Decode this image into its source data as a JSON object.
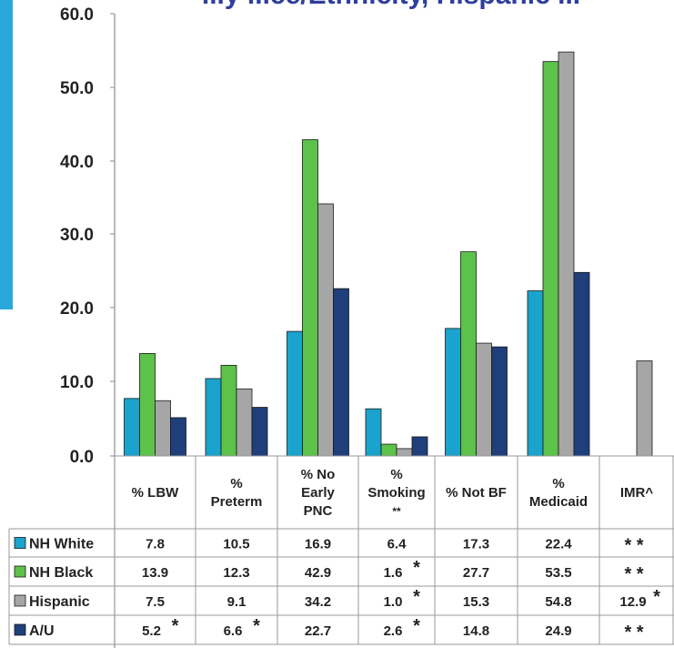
{
  "title": "...y ...ce/Ethnicity, Hispanic ...",
  "colors": {
    "nh_white": "#1aa3cc",
    "nh_black": "#5cc24a",
    "hispanic": "#a6a6a6",
    "au": "#1f3f7a",
    "title": "#2e3f9e",
    "left_band": "#2aa8dc"
  },
  "chart_data": {
    "type": "bar",
    "title": "",
    "xlabel": "",
    "ylabel": "",
    "ylim": [
      0,
      60
    ],
    "yticks": [
      "0.0",
      "10.0",
      "20.0",
      "30.0",
      "40.0",
      "50.0",
      "60.0"
    ],
    "grid": false,
    "legend": "table-left",
    "categories": [
      [
        "% LBW"
      ],
      [
        "%",
        "Preterm"
      ],
      [
        "% No",
        "Early",
        "PNC"
      ],
      [
        "%",
        "Smoking",
        "**"
      ],
      [
        "% Not BF"
      ],
      [
        "%",
        "Medicaid"
      ],
      [
        "IMR^"
      ]
    ],
    "series": [
      {
        "name": "NH White",
        "color": "#1aa3cc",
        "values": [
          7.8,
          10.5,
          16.9,
          6.4,
          17.3,
          22.4,
          null
        ],
        "labels": [
          "7.8",
          "10.5",
          "16.9",
          "6.4",
          "17.3",
          "22.4",
          "* *"
        ],
        "flags": [
          false,
          false,
          false,
          false,
          false,
          false,
          false
        ]
      },
      {
        "name": "NH Black",
        "color": "#5cc24a",
        "values": [
          13.9,
          12.3,
          42.9,
          1.6,
          27.7,
          53.5,
          null
        ],
        "labels": [
          "13.9",
          "12.3",
          "42.9",
          "1.6",
          "27.7",
          "53.5",
          "* *"
        ],
        "flags": [
          false,
          false,
          false,
          true,
          false,
          false,
          false
        ]
      },
      {
        "name": "Hispanic",
        "color": "#a6a6a6",
        "values": [
          7.5,
          9.1,
          34.2,
          1.0,
          15.3,
          54.8,
          12.9
        ],
        "labels": [
          "7.5",
          "9.1",
          "34.2",
          "1.0",
          "15.3",
          "54.8",
          "12.9"
        ],
        "flags": [
          false,
          false,
          false,
          true,
          false,
          false,
          true
        ]
      },
      {
        "name": "A/U",
        "color": "#1f3f7a",
        "values": [
          5.2,
          6.6,
          22.7,
          2.6,
          14.8,
          24.9,
          null
        ],
        "labels": [
          "5.2",
          "6.6",
          "22.7",
          "2.6",
          "14.8",
          "24.9",
          "* *"
        ],
        "flags": [
          true,
          true,
          false,
          true,
          false,
          false,
          false
        ]
      }
    ]
  }
}
